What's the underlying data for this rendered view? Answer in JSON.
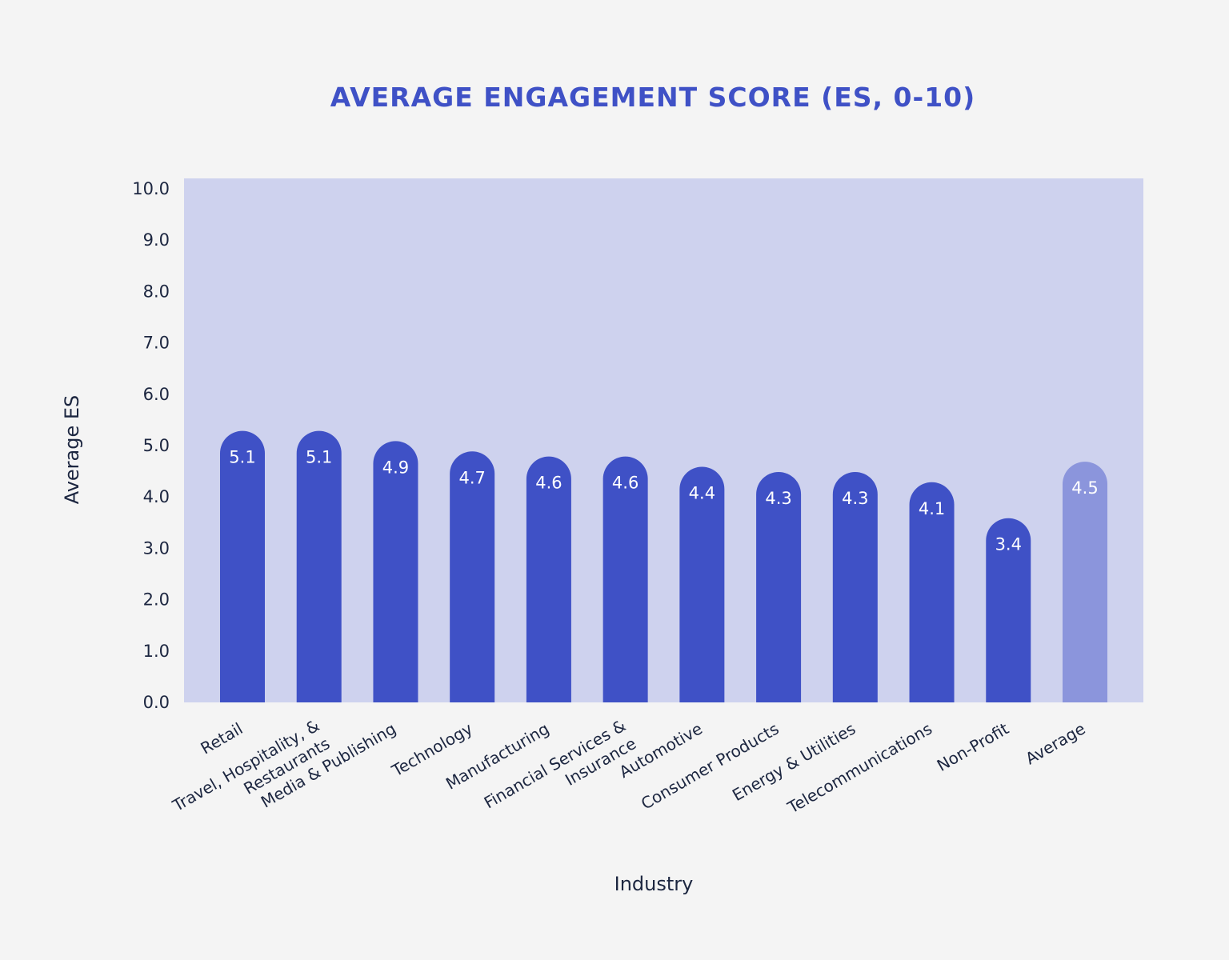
{
  "chart_data": {
    "type": "bar",
    "title": "AVERAGE ENGAGEMENT SCORE (ES, 0-10)",
    "xlabel": "Industry",
    "ylabel": "Average ES",
    "ylim": [
      0,
      10
    ],
    "yticks": [
      "0.0",
      "1.0",
      "2.0",
      "3.0",
      "4.0",
      "5.0",
      "6.0",
      "7.0",
      "8.0",
      "9.0",
      "10.0"
    ],
    "categories": [
      "Retail",
      "Travel, Hospitality, & Restaurants",
      "Media & Publishing",
      "Technology",
      "Manufacturing",
      "Financial Services & Insurance",
      "Automotive",
      "Consumer Products",
      "Energy & Utilities",
      "Telecommunications",
      "Non-Profit",
      "Average"
    ],
    "values": [
      5.1,
      5.1,
      4.9,
      4.7,
      4.6,
      4.6,
      4.4,
      4.3,
      4.3,
      4.1,
      3.4,
      4.5
    ],
    "value_labels": [
      "5.1",
      "5.1",
      "4.9",
      "4.7",
      "4.6",
      "4.6",
      "4.4",
      "4.3",
      "4.3",
      "4.1",
      "3.4",
      "4.5"
    ],
    "highlight_category": "Average",
    "grid": false,
    "legend": "none"
  },
  "colors": {
    "background": "#f4f4f4",
    "plot_area": "#ced2ee",
    "bar": "#3f51c6",
    "bar_highlight": "#8b95dc",
    "title": "#3f51c6",
    "text": "#1c2640"
  }
}
